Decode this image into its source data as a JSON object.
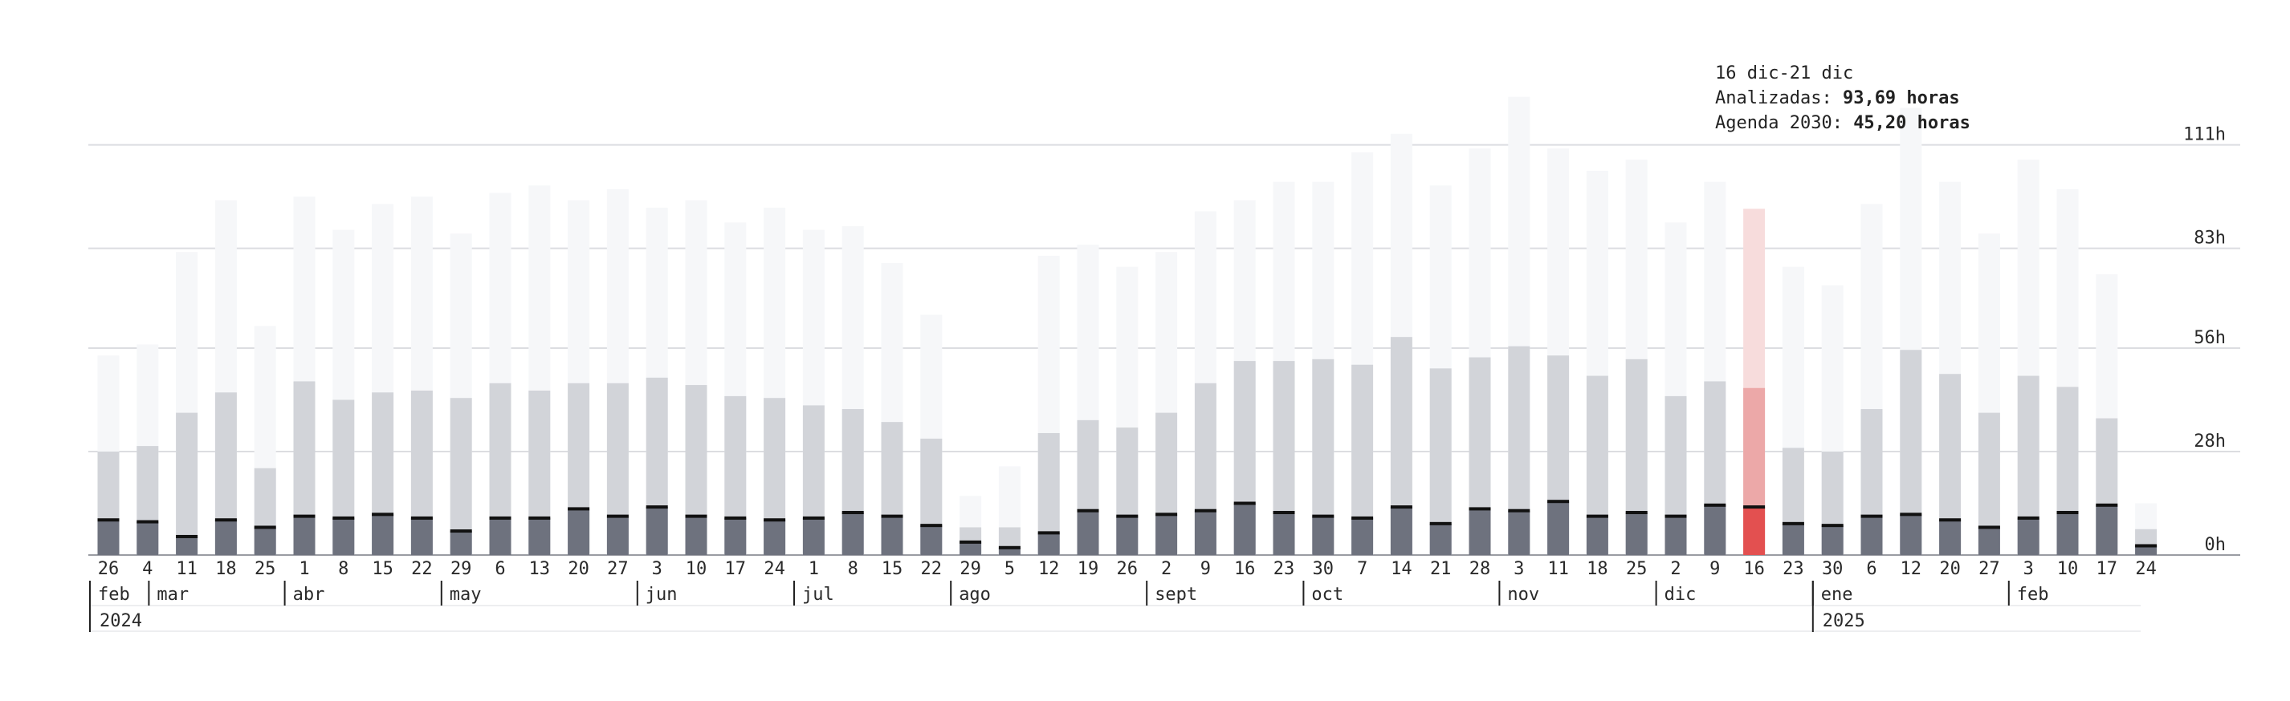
{
  "tooltip": {
    "range": "16 dic-21 dic",
    "line1_label": "Analizadas: ",
    "line1_value": "93,69 horas",
    "line2_label": "Agenda 2030: ",
    "line2_value": "45,20 horas"
  },
  "colors": {
    "total_bar": "#f6f7f9",
    "middle_bar": "#d2d4d9",
    "bottom_bar": "#6e727e",
    "bottom_cap": "#111111",
    "highlight_total": "#f7dcdc",
    "highlight_middle": "#eca8a8",
    "highlight_bottom": "#e35050",
    "grid": "#dcdde1"
  },
  "chart_data": {
    "type": "bar",
    "highlight_index": 42,
    "y_ticks": [
      0,
      28,
      56,
      83,
      111
    ],
    "y_tick_labels": [
      "0h",
      "28h",
      "56h",
      "83h",
      "111h"
    ],
    "x_day_labels": [
      "26",
      "4",
      "11",
      "18",
      "25",
      "1",
      "8",
      "15",
      "22",
      "29",
      "6",
      "13",
      "20",
      "27",
      "3",
      "10",
      "17",
      "24",
      "1",
      "8",
      "15",
      "22",
      "29",
      "5",
      "12",
      "19",
      "26",
      "2",
      "9",
      "16",
      "23",
      "30",
      "7",
      "14",
      "21",
      "28",
      "3",
      "11",
      "18",
      "25",
      "2",
      "9",
      "16",
      "23",
      "30",
      "6",
      "12",
      "20",
      "27",
      "3",
      "10",
      "17",
      "24"
    ],
    "months": [
      {
        "label": "feb",
        "start": 0
      },
      {
        "label": "mar",
        "start": 1
      },
      {
        "label": "abr",
        "start": 5
      },
      {
        "label": "may",
        "start": 9
      },
      {
        "label": "jun",
        "start": 14
      },
      {
        "label": "jul",
        "start": 18
      },
      {
        "label": "ago",
        "start": 22
      },
      {
        "label": "sept",
        "start": 27
      },
      {
        "label": "oct",
        "start": 31
      },
      {
        "label": "nov",
        "start": 36
      },
      {
        "label": "dic",
        "start": 40
      },
      {
        "label": "ene",
        "start": 44
      },
      {
        "label": "feb",
        "start": 49
      }
    ],
    "years": [
      {
        "label": "2024",
        "start": 0
      },
      {
        "label": "2025",
        "start": 44
      }
    ],
    "series": [
      {
        "values": [
          54,
          57,
          82,
          96,
          62,
          97,
          88,
          95,
          97,
          87,
          98,
          100,
          96,
          99,
          94,
          96,
          90,
          94,
          88,
          89,
          79,
          65,
          16,
          24,
          81,
          84,
          78,
          82,
          93,
          96,
          101,
          101,
          109,
          114,
          100,
          110,
          124,
          110,
          104,
          107,
          90,
          101,
          93.69,
          78,
          73,
          95,
          121,
          101,
          87,
          107,
          99,
          76,
          14
        ]
      },
      {
        "values": [
          28,
          29.5,
          38.5,
          44,
          23.5,
          47,
          42,
          44,
          44.5,
          42.5,
          46.5,
          44.5,
          46.5,
          46.5,
          48,
          46,
          43,
          42.5,
          40.5,
          39.5,
          36,
          31.5,
          7.5,
          7.5,
          33,
          36.5,
          34.5,
          38.5,
          46.5,
          52.5,
          52.5,
          53,
          51.5,
          59,
          50.5,
          53.5,
          56.5,
          54,
          48.5,
          53,
          43,
          47,
          45.2,
          29,
          28,
          39.5,
          55.5,
          49,
          38.5,
          48.5,
          45.5,
          37,
          7
        ]
      },
      {
        "values": [
          9.5,
          9,
          5,
          9.5,
          7.5,
          10.5,
          10,
          11,
          10,
          6.5,
          10,
          10,
          12.5,
          10.5,
          13,
          10.5,
          10,
          9.5,
          10,
          11.5,
          10.5,
          8,
          3.5,
          2,
          6,
          12,
          10.5,
          11,
          12,
          14,
          11.5,
          10.5,
          10,
          13,
          8.5,
          12.5,
          12,
          14.5,
          10.5,
          11.5,
          10.5,
          13.5,
          13,
          8.5,
          8,
          10.5,
          11,
          9.5,
          7.5,
          10,
          11.5,
          13.5,
          2.5
        ]
      }
    ]
  }
}
